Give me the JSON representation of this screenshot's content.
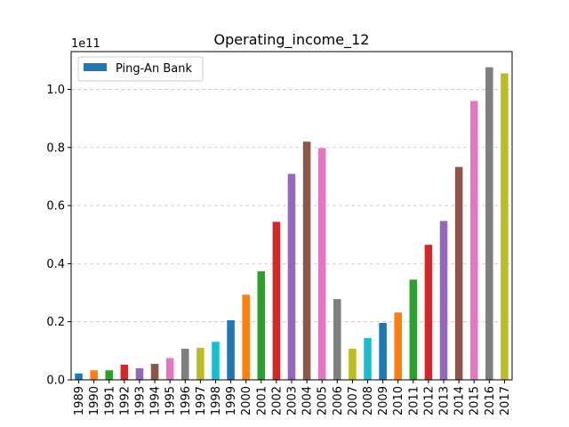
{
  "chart_data": {
    "type": "bar",
    "title": "Operating_income_12",
    "xlabel": "____",
    "ylabel": "",
    "offset_label": "1e11",
    "ylim": [
      0,
      1.13
    ],
    "yticks": [
      0.0,
      0.2,
      0.4,
      0.6,
      0.8,
      1.0
    ],
    "ytick_labels": [
      "0.0",
      "0.2",
      "0.4",
      "0.6",
      "0.8",
      "1.0"
    ],
    "grid": "y-dashed",
    "legend": {
      "position": "top-left",
      "entries": [
        {
          "label": "Ping-An Bank",
          "color": "#1f77b4"
        }
      ]
    },
    "categories": [
      "1989",
      "1990",
      "1991",
      "1992",
      "1993",
      "1994",
      "1995",
      "1996",
      "1997",
      "1998",
      "1999",
      "2000",
      "2001",
      "2002",
      "2003",
      "2004",
      "2005",
      "2006",
      "2007",
      "2008",
      "2009",
      "2010",
      "2011",
      "2012",
      "2013",
      "2014",
      "2015",
      "2016",
      "2017"
    ],
    "series": [
      {
        "name": "Ping-An Bank",
        "values": [
          0.022,
          0.033,
          0.033,
          0.052,
          0.04,
          0.055,
          0.075,
          0.107,
          0.11,
          0.131,
          0.205,
          0.293,
          0.374,
          0.544,
          0.709,
          0.82,
          0.798,
          0.278,
          0.107,
          0.144,
          0.196,
          0.232,
          0.345,
          0.465,
          0.547,
          0.733,
          0.96,
          1.076,
          1.055
        ]
      }
    ],
    "bar_colors": [
      "#1f77b4",
      "#ff7f0e",
      "#2ca02c",
      "#d62728",
      "#9467bd",
      "#8c564b",
      "#e377c2",
      "#7f7f7f",
      "#bcbd22",
      "#17becf"
    ]
  }
}
